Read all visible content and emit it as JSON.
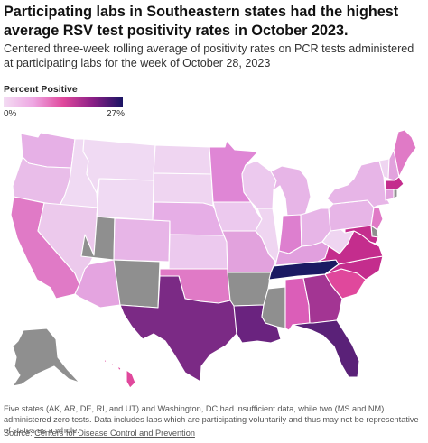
{
  "header": {
    "title": "Participating labs in Southeastern states had the highest average RSV test positivity rates in October 2023.",
    "subtitle": "Centered three-week rolling average of positivity rates on PCR tests administered at participating labs for the week of October 28, 2023"
  },
  "legend": {
    "title": "Percent Positive",
    "min_label": "0%",
    "max_label": "27%",
    "scale": [
      "#f3dcf3",
      "#eea6e2",
      "#e0489c",
      "#8a1f86",
      "#1a1463"
    ],
    "no_data_color": "#8f8f8f"
  },
  "footer": {
    "note": "Five states (AK, AR, DE, RI, and UT) and Washington, DC had insufficient data, while two (MS and NM) administered zero tests. Data includes labs which are participating voluntarily and thus may not be representative of states as a whole.",
    "source_prefix": "Source: ",
    "source_link": "Centers for Disease Control and Prevention"
  },
  "map_data": {
    "states": [
      {
        "code": "WA",
        "color": "#e6b0e6"
      },
      {
        "code": "OR",
        "color": "#e9bde9"
      },
      {
        "code": "CA",
        "color": "#e07ac6"
      },
      {
        "code": "ID",
        "color": "#f0daf3"
      },
      {
        "code": "NV",
        "color": "#ecc9ec"
      },
      {
        "code": "MT",
        "color": "#f0daf3"
      },
      {
        "code": "WY",
        "color": "#f0daf3"
      },
      {
        "code": "UT",
        "color": "#8f8f8f"
      },
      {
        "code": "AZ",
        "color": "#e4a4e0"
      },
      {
        "code": "CO",
        "color": "#e7b5e7"
      },
      {
        "code": "NM",
        "color": "#8f8f8f"
      },
      {
        "code": "ND",
        "color": "#efd5f1"
      },
      {
        "code": "SD",
        "color": "#efd5f1"
      },
      {
        "code": "NE",
        "color": "#e6aee6"
      },
      {
        "code": "KS",
        "color": "#ecc9ee"
      },
      {
        "code": "OK",
        "color": "#e07ac6"
      },
      {
        "code": "TX",
        "color": "#7b2a85"
      },
      {
        "code": "MN",
        "color": "#df86d5"
      },
      {
        "code": "IA",
        "color": "#ecc9ee"
      },
      {
        "code": "MO",
        "color": "#e2a2dd"
      },
      {
        "code": "AR",
        "color": "#8f8f8f"
      },
      {
        "code": "LA",
        "color": "#6a237f"
      },
      {
        "code": "WI",
        "color": "#ecc9ee"
      },
      {
        "code": "IL",
        "color": "#efd5f1"
      },
      {
        "code": "MS",
        "color": "#8f8f8f"
      },
      {
        "code": "MI",
        "color": "#e7b5e7"
      },
      {
        "code": "IN",
        "color": "#dd7fcf"
      },
      {
        "code": "KY",
        "color": "#e19fde"
      },
      {
        "code": "TN",
        "color": "#1b1a63"
      },
      {
        "code": "AL",
        "color": "#db5eb8"
      },
      {
        "code": "GA",
        "color": "#a33593"
      },
      {
        "code": "FL",
        "color": "#5a2178"
      },
      {
        "code": "OH",
        "color": "#e7b5e7"
      },
      {
        "code": "WV",
        "color": "#efd5f1"
      },
      {
        "code": "VA",
        "color": "#c42d8d"
      },
      {
        "code": "NC",
        "color": "#c42d8d"
      },
      {
        "code": "SC",
        "color": "#e0489c"
      },
      {
        "code": "PA",
        "color": "#e7b5e7"
      },
      {
        "code": "NY",
        "color": "#e7b5e7"
      },
      {
        "code": "NJ",
        "color": "#e07ac6"
      },
      {
        "code": "DE",
        "color": "#8f8f8f"
      },
      {
        "code": "MD",
        "color": "#c42d8d"
      },
      {
        "code": "VT",
        "color": "#efd5f1"
      },
      {
        "code": "NH",
        "color": "#e2a2dd"
      },
      {
        "code": "ME",
        "color": "#e07ac6"
      },
      {
        "code": "MA",
        "color": "#c42d8d"
      },
      {
        "code": "CT",
        "color": "#e2a2dd"
      },
      {
        "code": "RI",
        "color": "#8f8f8f"
      },
      {
        "code": "AK",
        "color": "#8f8f8f"
      },
      {
        "code": "HI",
        "color": "#e0489c"
      }
    ]
  }
}
